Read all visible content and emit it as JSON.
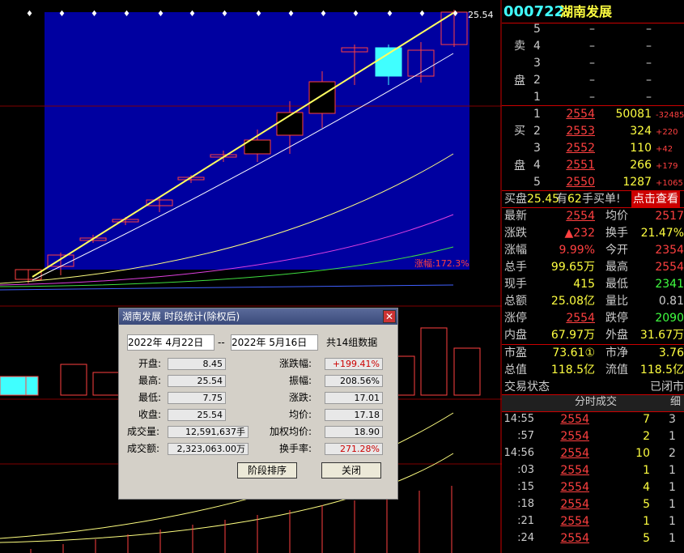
{
  "chart": {
    "last_price_label": "25.54",
    "range_label": "涨幅:172.3%"
  },
  "dialog": {
    "title": "湖南发展 时段统计(除权后)",
    "start_date": "2022年 4月22日",
    "separator": "--",
    "end_date": "2022年 5月16日",
    "count": "共14组数据",
    "left_fields": [
      [
        "开盘:",
        "8.45"
      ],
      [
        "最高:",
        "25.54"
      ],
      [
        "最低:",
        "7.75"
      ],
      [
        "收盘:",
        "25.54"
      ],
      [
        "成交量:",
        "12,591,637手"
      ],
      [
        "成交额:",
        "2,323,063.00万"
      ]
    ],
    "right_fields": [
      [
        "涨跌幅:",
        "+199.41%"
      ],
      [
        "振幅:",
        "208.56%"
      ],
      [
        "涨跌:",
        "17.01"
      ],
      [
        "均价:",
        "17.18"
      ],
      [
        "加权均价:",
        "18.90"
      ],
      [
        "换手率:",
        "271.28%"
      ]
    ],
    "buttons": [
      "阶段排序",
      "关闭"
    ]
  },
  "quote": {
    "code": "000722",
    "name": "湖南发展",
    "sell_label": [
      "卖",
      "盘"
    ],
    "sell_rows": [
      [
        "5",
        "–",
        "–"
      ],
      [
        "4",
        "–",
        "–"
      ],
      [
        "3",
        "–",
        "–"
      ],
      [
        "2",
        "–",
        "–"
      ],
      [
        "1",
        "–",
        "–"
      ]
    ],
    "buy_label": [
      "买",
      "盘"
    ],
    "buy_rows": [
      [
        "1",
        "2554",
        "50081",
        "-32485"
      ],
      [
        "2",
        "2553",
        "324",
        "+220"
      ],
      [
        "3",
        "2552",
        "110",
        "+42"
      ],
      [
        "4",
        "2551",
        "266",
        "+179"
      ],
      [
        "5",
        "2550",
        "1287",
        "+1065"
      ]
    ],
    "alert": [
      "买盘",
      "25.45",
      "有",
      "62",
      "手买单!"
    ],
    "alert_button": "点击查看",
    "stats": [
      [
        "最新",
        "2554",
        "均价",
        "2517"
      ],
      [
        "涨跌",
        "▲232",
        "换手",
        "21.47%"
      ],
      [
        "涨幅",
        "9.99%",
        "今开",
        "2354"
      ],
      [
        "总手",
        "99.65万",
        "最高",
        "2554"
      ],
      [
        "现手",
        "415",
        "最低",
        "2341"
      ],
      [
        "总额",
        "25.08亿",
        "量比",
        "0.81"
      ],
      [
        "涨停",
        "2554",
        "跌停",
        "2090"
      ],
      [
        "内盘",
        "67.97万",
        "外盘",
        "31.67万"
      ]
    ],
    "market": [
      [
        "市盈",
        "73.61①",
        "市净",
        "3.76"
      ],
      [
        "总值",
        "118.5亿",
        "流值",
        "118.5亿"
      ]
    ],
    "status": [
      "交易状态",
      "已闭市"
    ],
    "trades_header": [
      "分时成交",
      "细"
    ],
    "trades": [
      [
        "14:55",
        "2554",
        "7",
        "3"
      ],
      [
        ":57",
        "2554",
        "2",
        "1"
      ],
      [
        "14:56",
        "2554",
        "10",
        "2"
      ],
      [
        ":03",
        "2554",
        "1",
        "1"
      ],
      [
        ":15",
        "2554",
        "4",
        "1"
      ],
      [
        ":18",
        "2554",
        "5",
        "1"
      ],
      [
        ":21",
        "2554",
        "1",
        "1"
      ],
      [
        ":24",
        "2554",
        "5",
        "1"
      ]
    ]
  }
}
